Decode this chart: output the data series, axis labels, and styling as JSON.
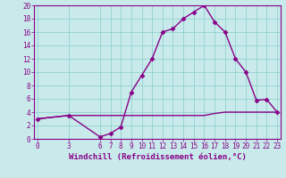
{
  "xlabel": "Windchill (Refroidissement éolien,°C)",
  "background_color": "#c8eaea",
  "line_color": "#880088",
  "x_hours": [
    0,
    3,
    6,
    7,
    8,
    9,
    10,
    11,
    12,
    13,
    14,
    15,
    16,
    17,
    18,
    19,
    20,
    21,
    22,
    23
  ],
  "y_temp": [
    3,
    3.5,
    0.3,
    0.8,
    1.8,
    7,
    9.5,
    12,
    16,
    16.5,
    18,
    19,
    20,
    17.5,
    16,
    12,
    10,
    5.8,
    5.9,
    4
  ],
  "y_windchill": [
    3,
    3.5,
    3.5,
    3.5,
    3.5,
    3.5,
    3.5,
    3.5,
    3.5,
    3.5,
    3.5,
    3.5,
    3.5,
    3.8,
    4,
    4,
    4,
    4,
    4,
    4
  ],
  "xticks": [
    0,
    3,
    6,
    7,
    8,
    9,
    10,
    11,
    12,
    13,
    14,
    15,
    16,
    17,
    18,
    19,
    20,
    21,
    22,
    23
  ],
  "yticks": [
    0,
    2,
    4,
    6,
    8,
    10,
    12,
    14,
    16,
    18,
    20
  ],
  "xlim": [
    -0.3,
    23.3
  ],
  "ylim": [
    0,
    20
  ],
  "grid_color": "#88cccc",
  "marker": "D",
  "markersize": 2.5,
  "linewidth": 1.0,
  "xlabel_fontsize": 6.5,
  "tick_fontsize": 5.5,
  "xlabel_fontweight": "bold"
}
